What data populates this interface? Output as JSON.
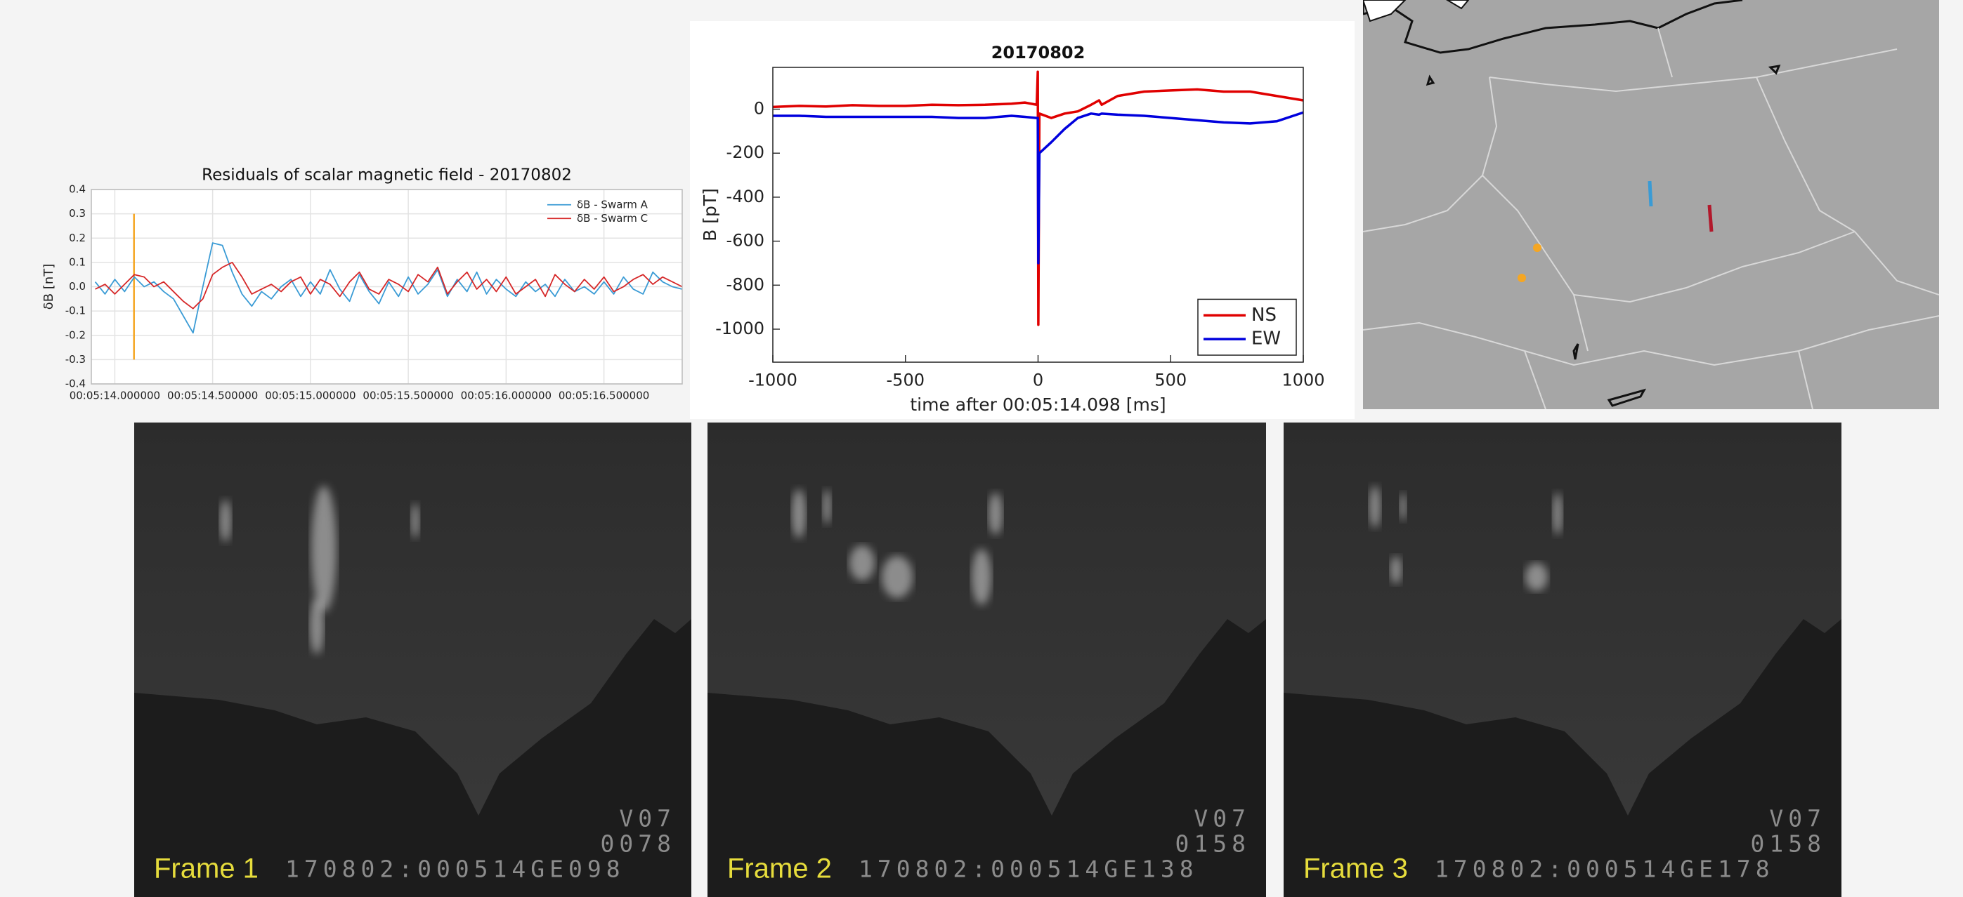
{
  "chart_data": [
    {
      "type": "line",
      "title": "Residuals of scalar magnetic field  - 20170802",
      "y_label": "δB [nT]",
      "x": [
        313.9,
        313.95,
        314,
        314.05,
        314.1,
        314.15,
        314.2,
        314.25,
        314.3,
        314.35,
        314.4,
        314.45,
        314.5,
        314.55,
        314.6,
        314.65,
        314.7,
        314.75,
        314.8,
        314.85,
        314.9,
        314.95,
        315,
        315.05,
        315.1,
        315.15,
        315.2,
        315.25,
        315.3,
        315.35,
        315.4,
        315.45,
        315.5,
        315.55,
        315.6,
        315.65,
        315.7,
        315.75,
        315.8,
        315.85,
        315.9,
        315.95,
        316,
        316.05,
        316.1,
        316.15,
        316.2,
        316.25,
        316.3,
        316.35,
        316.4,
        316.45,
        316.5,
        316.55,
        316.6,
        316.65,
        316.7,
        316.75,
        316.8,
        316.85,
        316.9
      ],
      "series": [
        {
          "name": "δB - Swarm A",
          "color": "#3a9bd5",
          "values": [
            0.02,
            -0.03,
            0.03,
            -0.02,
            0.04,
            0,
            0.02,
            -0.02,
            -0.05,
            -0.12,
            -0.19,
            0,
            0.18,
            0.17,
            0.06,
            -0.03,
            -0.08,
            -0.02,
            -0.05,
            0,
            0.03,
            -0.04,
            0.02,
            -0.03,
            0.07,
            -0.01,
            -0.06,
            0.05,
            -0.02,
            -0.07,
            0.02,
            -0.04,
            0.04,
            -0.03,
            0.01,
            0.07,
            -0.04,
            0.03,
            -0.02,
            0.06,
            -0.03,
            0.03,
            -0.01,
            -0.04,
            0.02,
            -0.02,
            0.01,
            -0.04,
            0.03,
            -0.02,
            0,
            -0.03,
            0.02,
            -0.03,
            0.04,
            -0.01,
            -0.03,
            0.06,
            0.02,
            0,
            -0.01
          ]
        },
        {
          "name": "δB - Swarm C",
          "color": "#d62728",
          "values": [
            -0.01,
            0.01,
            -0.03,
            0.01,
            0.05,
            0.04,
            0,
            0.02,
            -0.02,
            -0.06,
            -0.09,
            -0.05,
            0.05,
            0.08,
            0.1,
            0.04,
            -0.03,
            -0.01,
            0.01,
            -0.02,
            0.02,
            0.04,
            -0.03,
            0.03,
            0.01,
            -0.04,
            0.02,
            0.06,
            -0.01,
            -0.03,
            0.03,
            0.01,
            -0.02,
            0.05,
            0.02,
            0.08,
            -0.03,
            0.02,
            0.06,
            -0.01,
            0.03,
            -0.02,
            0.04,
            -0.03,
            0,
            0.03,
            -0.04,
            0.05,
            0.01,
            -0.02,
            0.03,
            -0.01,
            0.04,
            -0.02,
            0,
            0.03,
            0.05,
            0.01,
            0.04,
            0.02,
            0
          ]
        }
      ],
      "xlim": [
        313.88,
        316.9
      ],
      "xticks": [
        {
          "value": 314,
          "label": "00:05:14.000000"
        },
        {
          "value": 314.5,
          "label": "00:05:14.500000"
        },
        {
          "value": 315,
          "label": "00:05:15.000000"
        },
        {
          "value": 315.5,
          "label": "00:05:15.500000"
        },
        {
          "value": 316,
          "label": "00:05:16.000000"
        },
        {
          "value": 316.5,
          "label": "00:05:16.500000"
        }
      ],
      "ylim": [
        -0.4,
        0.4
      ],
      "yticks": [
        -0.4,
        -0.3,
        -0.2,
        -0.1,
        {
          "value": 0,
          "label": "0.0"
        },
        0.1,
        0.2,
        0.3,
        0.4
      ],
      "grid": true,
      "legend": "upper right",
      "vline": {
        "x": 314.098,
        "y": [
          -0.3,
          0.3
        ],
        "color": "#f5a623"
      }
    },
    {
      "type": "line",
      "title": "20170802",
      "x_label": "time after 00:05:14.098 [ms]",
      "y_label": "B [pT]",
      "x": [
        -1000,
        -900,
        -800,
        -700,
        -600,
        -500,
        -400,
        -300,
        -200,
        -100,
        -50,
        -5,
        -1,
        1,
        5,
        50,
        100,
        150,
        200,
        230,
        240,
        300,
        400,
        500,
        600,
        700,
        800,
        900,
        1000
      ],
      "series": [
        {
          "name": "NS",
          "color": "#e00000",
          "values": [
            10,
            15,
            12,
            18,
            15,
            15,
            20,
            18,
            20,
            25,
            30,
            20,
            170,
            -980,
            -20,
            -40,
            -20,
            -10,
            20,
            40,
            20,
            60,
            80,
            85,
            90,
            80,
            80,
            60,
            40
          ]
        },
        {
          "name": "EW",
          "color": "#0000dd",
          "values": [
            -30,
            -30,
            -35,
            -35,
            -35,
            -35,
            -35,
            -40,
            -40,
            -30,
            -35,
            -40,
            -40,
            -700,
            -200,
            -150,
            -90,
            -40,
            -20,
            -25,
            -20,
            -25,
            -30,
            -40,
            -50,
            -60,
            -65,
            -55,
            -15
          ]
        }
      ],
      "xlim": [
        -1000,
        1000
      ],
      "xticks": [
        -1000,
        -500,
        0,
        500,
        1000
      ],
      "ylim": [
        -1150,
        190
      ],
      "yticks": [
        -1000,
        -800,
        -600,
        -400,
        -200,
        0
      ],
      "grid": false,
      "legend": "lower right"
    }
  ],
  "frames": [
    {
      "label": "Frame 1",
      "camera": "V07",
      "counter": "0078",
      "timestamp": "170802:000514GE098"
    },
    {
      "label": "Frame 2",
      "camera": "V07",
      "counter": "0158",
      "timestamp": "170802:000514GE138"
    },
    {
      "label": "Frame 3",
      "camera": "V07",
      "counter": "0158",
      "timestamp": "170802:000514GE178"
    }
  ]
}
